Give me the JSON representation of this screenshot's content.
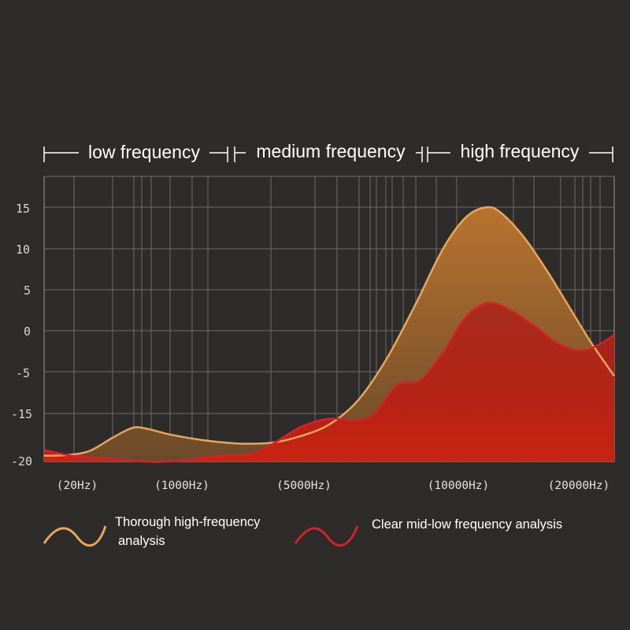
{
  "chart_data": {
    "type": "area",
    "title": "",
    "xlabel": "",
    "ylabel": "",
    "ylim": [
      -20,
      17
    ],
    "grid": true,
    "legend_position": "bottom",
    "y_ticks": [
      15,
      10,
      5,
      0,
      -5,
      -15,
      -20
    ],
    "x_tick_labels": [
      "(20Hz)",
      "(1000Hz)",
      "(5000Hz)",
      "(10000Hz)",
      "(20000Hz)"
    ],
    "bands": [
      {
        "label": "low frequency"
      },
      {
        "label": "medium frequency"
      },
      {
        "label": "high frequency"
      }
    ],
    "series": [
      {
        "name": "Thorough high-frequency analysis",
        "color": "#e8a55a",
        "x": [
          0,
          0.04,
          0.08,
          0.12,
          0.155,
          0.18,
          0.22,
          0.28,
          0.34,
          0.4,
          0.45,
          0.5,
          0.55,
          0.6,
          0.65,
          0.7,
          0.74,
          0.775,
          0.8,
          0.84,
          0.88,
          0.92,
          0.96,
          1.0
        ],
        "y": [
          -16.0,
          -15.6,
          -14.6,
          -13.0,
          -11.8,
          -11.9,
          -12.6,
          -13.3,
          -13.7,
          -13.6,
          -12.8,
          -11.4,
          -8.5,
          -3.5,
          3.0,
          10.0,
          13.8,
          15.0,
          14.4,
          11.5,
          7.5,
          3.0,
          -1.5,
          -5.5
        ]
      },
      {
        "name": "Clear mid-low frequency analysis",
        "color": "#d8202a",
        "x": [
          0,
          0.05,
          0.1,
          0.15,
          0.19,
          0.2,
          0.24,
          0.28,
          0.32,
          0.36,
          0.4,
          0.45,
          0.5,
          0.55,
          0.58,
          0.62,
          0.66,
          0.7,
          0.74,
          0.78,
          0.82,
          0.86,
          0.9,
          0.94,
          0.97,
          1.0
        ],
        "y": [
          -14.5,
          -16.2,
          -17.8,
          -19.3,
          -20.3,
          -20.3,
          -19.4,
          -17.3,
          -15.8,
          -15.2,
          -13.8,
          -11.7,
          -10.7,
          -10.9,
          -10.0,
          -6.6,
          -6.0,
          -2.6,
          1.7,
          3.4,
          2.4,
          0.6,
          -1.5,
          -2.4,
          -1.8,
          -0.5
        ]
      }
    ]
  }
}
